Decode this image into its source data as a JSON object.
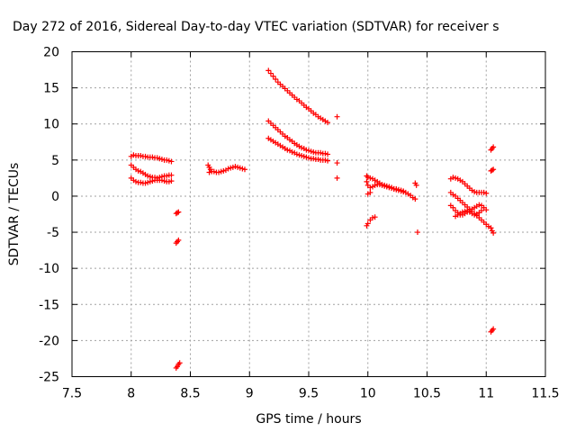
{
  "chart_data": {
    "type": "scatter",
    "title": "Day 272 of 2016, Sidereal Day-to-day VTEC variation (SDTVAR) for receiver s",
    "xlabel": "GPS time / hours",
    "ylabel": "SDTVAR / TECUs",
    "xlim": [
      7.5,
      11.5
    ],
    "ylim": [
      -25,
      20
    ],
    "xticks": [
      7.5,
      8,
      8.5,
      9,
      9.5,
      10,
      10.5,
      11,
      11.5
    ],
    "yticks": [
      -25,
      -20,
      -15,
      -10,
      -5,
      0,
      5,
      10,
      15,
      20
    ],
    "xtick_labels": [
      "7.5",
      "8",
      "8.5",
      "9",
      "9.5",
      "10",
      "10.5",
      "11",
      "11.5"
    ],
    "ytick_labels": [
      "-25",
      "-20",
      "-15",
      "-10",
      "-5",
      "0",
      "5",
      "10",
      "15",
      "20"
    ],
    "grid": true,
    "marker": "+",
    "marker_color": "#ff0000",
    "series": [
      {
        "points": [
          [
            8.0,
            5.5
          ],
          [
            8.02,
            5.7
          ],
          [
            8.04,
            5.6
          ],
          [
            8.06,
            5.6
          ],
          [
            8.08,
            5.6
          ],
          [
            8.1,
            5.5
          ],
          [
            8.12,
            5.5
          ],
          [
            8.14,
            5.4
          ],
          [
            8.16,
            5.4
          ],
          [
            8.18,
            5.4
          ],
          [
            8.2,
            5.3
          ],
          [
            8.22,
            5.3
          ],
          [
            8.24,
            5.2
          ],
          [
            8.26,
            5.1
          ],
          [
            8.28,
            5.0
          ],
          [
            8.3,
            5.0
          ],
          [
            8.32,
            4.9
          ],
          [
            8.34,
            4.8
          ],
          [
            8.0,
            4.3
          ],
          [
            8.02,
            4.0
          ],
          [
            8.04,
            3.7
          ],
          [
            8.06,
            3.5
          ],
          [
            8.08,
            3.4
          ],
          [
            8.1,
            3.2
          ],
          [
            8.12,
            3.0
          ],
          [
            8.14,
            2.8
          ],
          [
            8.16,
            2.7
          ],
          [
            8.18,
            2.6
          ],
          [
            8.2,
            2.6
          ],
          [
            8.22,
            2.5
          ],
          [
            8.24,
            2.6
          ],
          [
            8.26,
            2.7
          ],
          [
            8.28,
            2.8
          ],
          [
            8.3,
            2.8
          ],
          [
            8.32,
            2.9
          ],
          [
            8.34,
            2.9
          ],
          [
            8.0,
            2.5
          ],
          [
            8.02,
            2.2
          ],
          [
            8.04,
            2.0
          ],
          [
            8.06,
            1.9
          ],
          [
            8.08,
            1.9
          ],
          [
            8.1,
            1.8
          ],
          [
            8.12,
            1.8
          ],
          [
            8.14,
            1.9
          ],
          [
            8.16,
            2.0
          ],
          [
            8.18,
            2.1
          ],
          [
            8.2,
            2.2
          ],
          [
            8.22,
            2.2
          ],
          [
            8.24,
            2.2
          ],
          [
            8.26,
            2.2
          ],
          [
            8.28,
            2.1
          ],
          [
            8.3,
            2.0
          ],
          [
            8.32,
            2.0
          ],
          [
            8.34,
            2.1
          ],
          [
            8.38,
            -2.4
          ],
          [
            8.39,
            -2.3
          ],
          [
            8.4,
            -2.2
          ],
          [
            8.38,
            -6.5
          ],
          [
            8.39,
            -6.3
          ],
          [
            8.4,
            -6.1
          ],
          [
            8.38,
            -23.8
          ],
          [
            8.39,
            -23.6
          ],
          [
            8.4,
            -23.3
          ],
          [
            8.41,
            -23.1
          ],
          [
            8.65,
            4.3
          ],
          [
            8.66,
            4.0
          ],
          [
            8.67,
            3.7
          ],
          [
            8.66,
            3.3
          ],
          [
            8.68,
            3.4
          ],
          [
            8.7,
            3.4
          ],
          [
            8.72,
            3.3
          ],
          [
            8.74,
            3.3
          ],
          [
            8.76,
            3.4
          ],
          [
            8.78,
            3.5
          ],
          [
            8.8,
            3.6
          ],
          [
            8.82,
            3.8
          ],
          [
            8.84,
            3.9
          ],
          [
            8.86,
            4.0
          ],
          [
            8.88,
            4.1
          ],
          [
            8.9,
            4.0
          ],
          [
            8.92,
            3.9
          ],
          [
            8.94,
            3.8
          ],
          [
            8.96,
            3.7
          ],
          [
            9.16,
            17.4
          ],
          [
            9.18,
            17.0
          ],
          [
            9.2,
            16.6
          ],
          [
            9.22,
            16.2
          ],
          [
            9.24,
            15.8
          ],
          [
            9.26,
            15.5
          ],
          [
            9.28,
            15.2
          ],
          [
            9.3,
            14.9
          ],
          [
            9.32,
            14.6
          ],
          [
            9.34,
            14.3
          ],
          [
            9.36,
            14.0
          ],
          [
            9.38,
            13.7
          ],
          [
            9.4,
            13.4
          ],
          [
            9.42,
            13.2
          ],
          [
            9.44,
            12.9
          ],
          [
            9.46,
            12.6
          ],
          [
            9.48,
            12.3
          ],
          [
            9.5,
            12.1
          ],
          [
            9.52,
            11.8
          ],
          [
            9.54,
            11.5
          ],
          [
            9.56,
            11.3
          ],
          [
            9.58,
            11.0
          ],
          [
            9.6,
            10.8
          ],
          [
            9.62,
            10.6
          ],
          [
            9.64,
            10.4
          ],
          [
            9.66,
            10.2
          ],
          [
            9.16,
            10.4
          ],
          [
            9.18,
            10.1
          ],
          [
            9.2,
            9.8
          ],
          [
            9.22,
            9.5
          ],
          [
            9.24,
            9.2
          ],
          [
            9.26,
            8.9
          ],
          [
            9.28,
            8.6
          ],
          [
            9.3,
            8.3
          ],
          [
            9.32,
            8.1
          ],
          [
            9.34,
            7.8
          ],
          [
            9.36,
            7.6
          ],
          [
            9.38,
            7.3
          ],
          [
            9.4,
            7.1
          ],
          [
            9.42,
            6.9
          ],
          [
            9.44,
            6.7
          ],
          [
            9.46,
            6.6
          ],
          [
            9.48,
            6.4
          ],
          [
            9.5,
            6.3
          ],
          [
            9.52,
            6.2
          ],
          [
            9.54,
            6.1
          ],
          [
            9.56,
            6.0
          ],
          [
            9.58,
            6.0
          ],
          [
            9.6,
            6.0
          ],
          [
            9.62,
            5.9
          ],
          [
            9.64,
            5.9
          ],
          [
            9.66,
            5.8
          ],
          [
            9.16,
            8.0
          ],
          [
            9.18,
            7.8
          ],
          [
            9.2,
            7.6
          ],
          [
            9.22,
            7.4
          ],
          [
            9.24,
            7.2
          ],
          [
            9.26,
            7.0
          ],
          [
            9.28,
            6.8
          ],
          [
            9.3,
            6.6
          ],
          [
            9.32,
            6.4
          ],
          [
            9.34,
            6.3
          ],
          [
            9.36,
            6.1
          ],
          [
            9.38,
            6.0
          ],
          [
            9.4,
            5.8
          ],
          [
            9.42,
            5.7
          ],
          [
            9.44,
            5.6
          ],
          [
            9.46,
            5.5
          ],
          [
            9.48,
            5.4
          ],
          [
            9.5,
            5.3
          ],
          [
            9.52,
            5.2
          ],
          [
            9.54,
            5.2
          ],
          [
            9.56,
            5.1
          ],
          [
            9.58,
            5.1
          ],
          [
            9.6,
            5.0
          ],
          [
            9.62,
            5.0
          ],
          [
            9.64,
            5.0
          ],
          [
            9.66,
            4.9
          ],
          [
            9.74,
            11.0
          ],
          [
            9.74,
            4.6
          ],
          [
            9.74,
            2.5
          ],
          [
            9.99,
            2.8
          ],
          [
            10.0,
            2.6
          ],
          [
            10.02,
            2.5
          ],
          [
            10.04,
            2.4
          ],
          [
            10.06,
            2.2
          ],
          [
            10.08,
            2.0
          ],
          [
            10.1,
            1.8
          ],
          [
            10.12,
            1.6
          ],
          [
            10.14,
            1.5
          ],
          [
            10.16,
            1.4
          ],
          [
            10.18,
            1.3
          ],
          [
            10.2,
            1.2
          ],
          [
            10.22,
            1.0
          ],
          [
            10.24,
            0.9
          ],
          [
            10.26,
            0.8
          ],
          [
            10.28,
            0.7
          ],
          [
            10.3,
            0.6
          ],
          [
            9.99,
            2.0
          ],
          [
            10.0,
            1.5
          ],
          [
            10.02,
            1.2
          ],
          [
            10.04,
            1.3
          ],
          [
            10.06,
            1.5
          ],
          [
            10.08,
            1.6
          ],
          [
            10.1,
            1.6
          ],
          [
            10.12,
            1.5
          ],
          [
            10.14,
            1.4
          ],
          [
            10.16,
            1.3
          ],
          [
            10.18,
            1.2
          ],
          [
            10.2,
            1.1
          ],
          [
            10.22,
            1.0
          ],
          [
            10.24,
            1.0
          ],
          [
            10.26,
            0.9
          ],
          [
            10.28,
            0.8
          ],
          [
            10.3,
            0.7
          ],
          [
            10.32,
            0.5
          ],
          [
            10.34,
            0.3
          ],
          [
            10.36,
            0.1
          ],
          [
            10.38,
            -0.2
          ],
          [
            10.4,
            -0.4
          ],
          [
            10.0,
            0.3
          ],
          [
            10.02,
            0.5
          ],
          [
            9.99,
            -4.1
          ],
          [
            10.0,
            -3.8
          ],
          [
            10.02,
            -3.3
          ],
          [
            10.04,
            -3.0
          ],
          [
            10.06,
            -2.9
          ],
          [
            10.4,
            1.8
          ],
          [
            10.41,
            1.5
          ],
          [
            10.42,
            -5.0
          ],
          [
            10.7,
            2.4
          ],
          [
            10.72,
            2.6
          ],
          [
            10.74,
            2.5
          ],
          [
            10.76,
            2.4
          ],
          [
            10.78,
            2.2
          ],
          [
            10.8,
            2.0
          ],
          [
            10.82,
            1.7
          ],
          [
            10.84,
            1.4
          ],
          [
            10.86,
            1.1
          ],
          [
            10.88,
            0.8
          ],
          [
            10.9,
            0.6
          ],
          [
            10.92,
            0.5
          ],
          [
            10.94,
            0.5
          ],
          [
            10.96,
            0.5
          ],
          [
            10.98,
            0.5
          ],
          [
            11.0,
            0.4
          ],
          [
            10.7,
            0.5
          ],
          [
            10.72,
            0.2
          ],
          [
            10.74,
            0.0
          ],
          [
            10.76,
            -0.3
          ],
          [
            10.78,
            -0.6
          ],
          [
            10.8,
            -0.9
          ],
          [
            10.82,
            -1.2
          ],
          [
            10.84,
            -1.5
          ],
          [
            10.86,
            -1.8
          ],
          [
            10.88,
            -2.1
          ],
          [
            10.9,
            -2.4
          ],
          [
            10.92,
            -2.7
          ],
          [
            10.94,
            -3.0
          ],
          [
            10.96,
            -3.3
          ],
          [
            10.98,
            -3.6
          ],
          [
            11.0,
            -3.9
          ],
          [
            11.02,
            -4.2
          ],
          [
            10.7,
            -1.3
          ],
          [
            10.72,
            -1.6
          ],
          [
            10.74,
            -2.0
          ],
          [
            10.76,
            -2.3
          ],
          [
            10.78,
            -2.6
          ],
          [
            10.8,
            -2.6
          ],
          [
            10.82,
            -2.4
          ],
          [
            10.84,
            -2.2
          ],
          [
            10.86,
            -2.0
          ],
          [
            10.88,
            -1.8
          ],
          [
            10.9,
            -1.6
          ],
          [
            10.92,
            -1.4
          ],
          [
            10.94,
            -1.2
          ],
          [
            10.96,
            -1.3
          ],
          [
            10.98,
            -1.6
          ],
          [
            11.0,
            -1.9
          ],
          [
            10.74,
            -2.8
          ],
          [
            10.76,
            -2.6
          ],
          [
            10.78,
            -2.4
          ],
          [
            10.8,
            -2.2
          ],
          [
            10.82,
            -2.1
          ],
          [
            10.84,
            -2.0
          ],
          [
            10.86,
            -2.2
          ],
          [
            10.88,
            -2.4
          ],
          [
            10.9,
            -2.6
          ],
          [
            10.92,
            -2.5
          ],
          [
            10.94,
            -2.3
          ],
          [
            10.96,
            -2.0
          ],
          [
            11.04,
            6.4
          ],
          [
            11.05,
            6.6
          ],
          [
            11.06,
            6.8
          ],
          [
            11.04,
            3.5
          ],
          [
            11.05,
            3.6
          ],
          [
            11.06,
            3.7
          ],
          [
            11.04,
            -4.4
          ],
          [
            11.05,
            -4.8
          ],
          [
            11.06,
            -5.1
          ],
          [
            11.04,
            -18.8
          ],
          [
            11.05,
            -18.6
          ],
          [
            11.06,
            -18.4
          ]
        ]
      }
    ]
  }
}
